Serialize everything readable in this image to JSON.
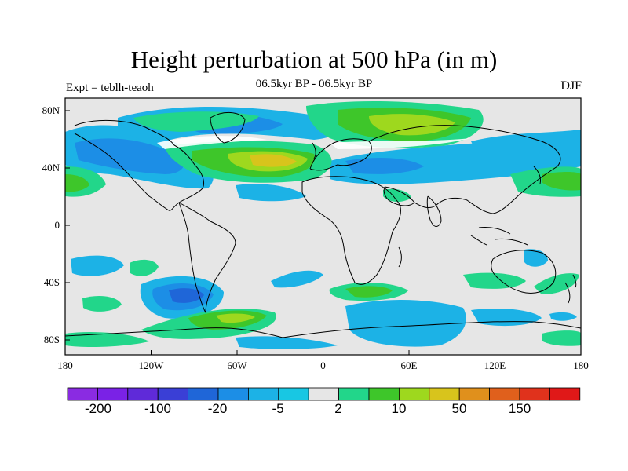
{
  "map": {
    "title": "Height perturbation at 500 hPa (in m)",
    "subtitle": "06.5kyr BP - 06.5kyr BP",
    "left_label": "Expt = teblh-teaoh",
    "right_label": "DJF",
    "lat_ticks": [
      "80N",
      "40N",
      "0",
      "40S",
      "80S"
    ],
    "lon_ticks": [
      "180",
      "120W",
      "60W",
      "0",
      "60E",
      "120E",
      "180"
    ],
    "colorbar_labels": [
      "-200",
      "-100",
      "-20",
      "-5",
      "2",
      "10",
      "50",
      "150"
    ],
    "colorbar_colors": [
      "#8a2be2",
      "#7a22e6",
      "#5f2ad9",
      "#3a3fd6",
      "#1f66d8",
      "#1c8ee6",
      "#1cb2e6",
      "#18c7e3",
      "#e6e6e6",
      "#22d68a",
      "#3ec62a",
      "#9ed81e",
      "#d8c41c",
      "#e0901c",
      "#e0601c",
      "#e0321c",
      "#e01818"
    ],
    "palette": {
      "neutral": "#e6e6e6",
      "light_blue": "#18c7e3",
      "mid_blue": "#1cb2e6",
      "blue": "#1c8ee6",
      "deep_blue": "#1f66d8",
      "green": "#22d68a",
      "bright_green": "#3ec62a",
      "yellow_green": "#9ed81e",
      "yellow": "#d8c41c",
      "white": "#ffffff",
      "coast": "#000000"
    }
  }
}
